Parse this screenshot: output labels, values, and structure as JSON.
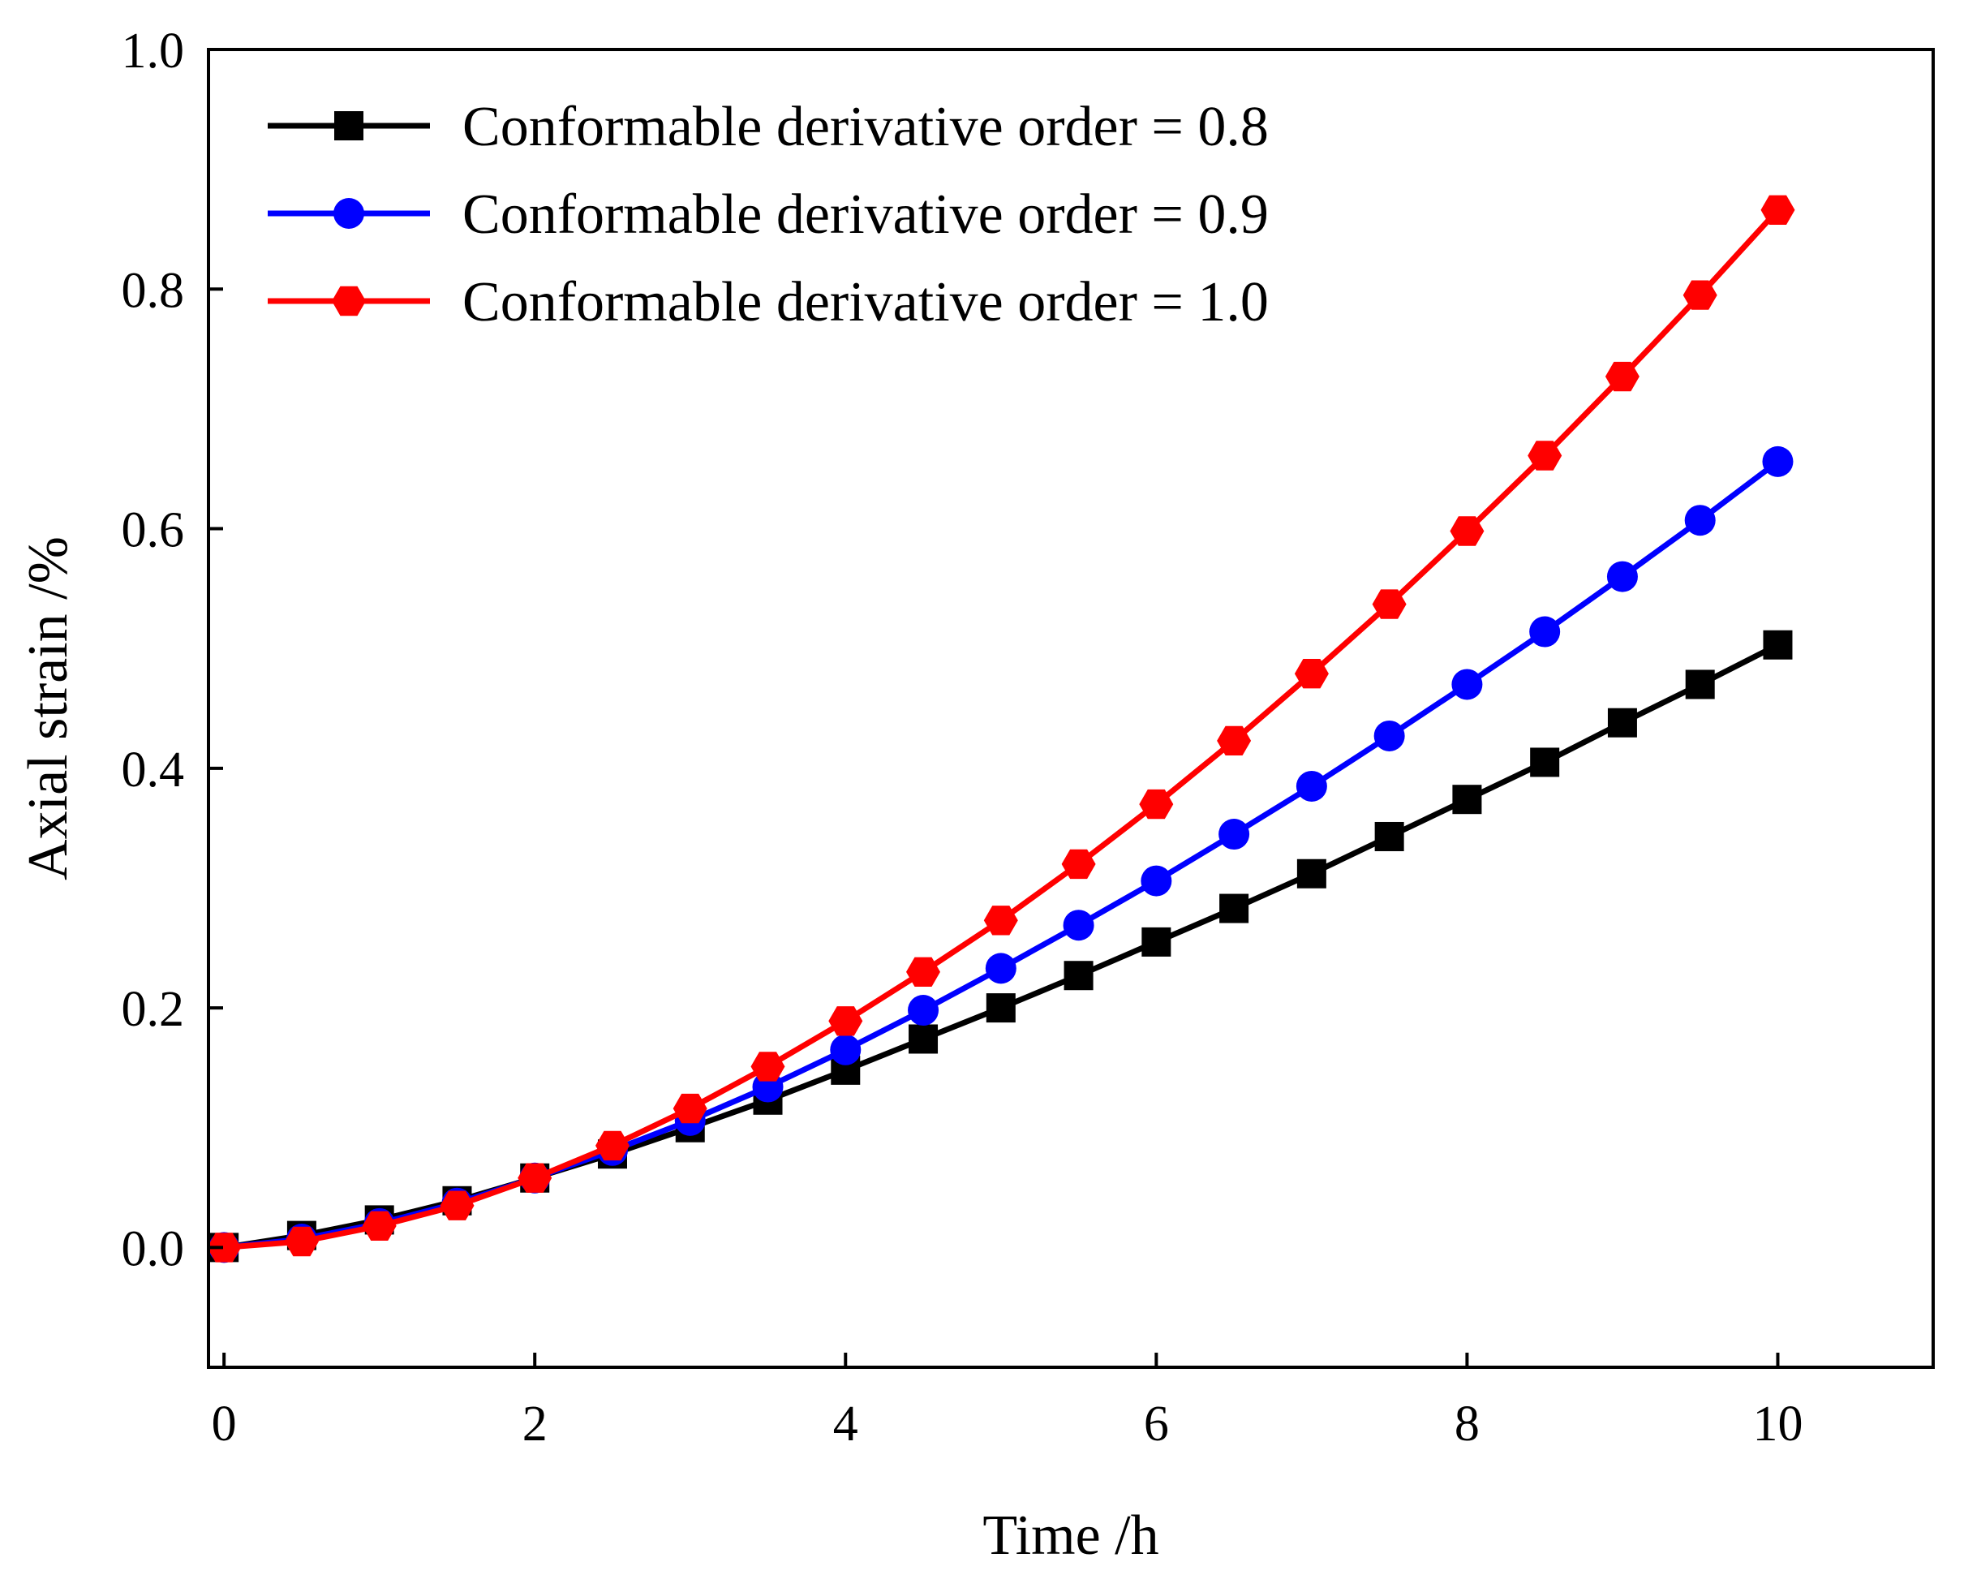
{
  "chart_data": {
    "type": "line",
    "title": "",
    "xlabel": "Time /h",
    "ylabel": "Axial strain /%",
    "xlim": [
      -0.1,
      11
    ],
    "ylim": [
      -0.1,
      1.0
    ],
    "xticks": [
      0,
      2,
      4,
      6,
      8,
      10
    ],
    "xtick_labels": [
      "0",
      "2",
      "4",
      "6",
      "8",
      "10"
    ],
    "yticks": [
      0.0,
      0.2,
      0.4,
      0.6,
      0.8,
      1.0
    ],
    "ytick_labels": [
      "0.0",
      "0.2",
      "0.4",
      "0.6",
      "0.8",
      "1.0"
    ],
    "grid": false,
    "legend_position": "top-left",
    "x": [
      0,
      0.5,
      1,
      1.5,
      2,
      2.5,
      3,
      3.5,
      4,
      4.5,
      5,
      5.5,
      6,
      6.5,
      7,
      7.5,
      8,
      8.5,
      9,
      9.5,
      10
    ],
    "series": [
      {
        "name": "Conformable derivative order = 0.8",
        "color": "#000000",
        "marker": "square",
        "values": [
          0.0,
          0.01,
          0.023,
          0.039,
          0.058,
          0.078,
          0.1,
          0.123,
          0.148,
          0.174,
          0.2,
          0.227,
          0.255,
          0.283,
          0.312,
          0.343,
          0.374,
          0.405,
          0.438,
          0.47,
          0.503
        ]
      },
      {
        "name": "Conformable derivative order = 0.9",
        "color": "#0000ff",
        "marker": "circle",
        "values": [
          0.0,
          0.007,
          0.02,
          0.037,
          0.058,
          0.081,
          0.106,
          0.134,
          0.165,
          0.198,
          0.233,
          0.269,
          0.306,
          0.345,
          0.385,
          0.427,
          0.47,
          0.514,
          0.56,
          0.607,
          0.656
        ]
      },
      {
        "name": "Conformable derivative order = 1.0",
        "color": "#ff0000",
        "marker": "hexagon",
        "values": [
          0.0,
          0.005,
          0.018,
          0.035,
          0.058,
          0.085,
          0.116,
          0.151,
          0.189,
          0.23,
          0.273,
          0.32,
          0.37,
          0.423,
          0.479,
          0.537,
          0.598,
          0.661,
          0.727,
          0.795,
          0.866
        ]
      }
    ]
  }
}
